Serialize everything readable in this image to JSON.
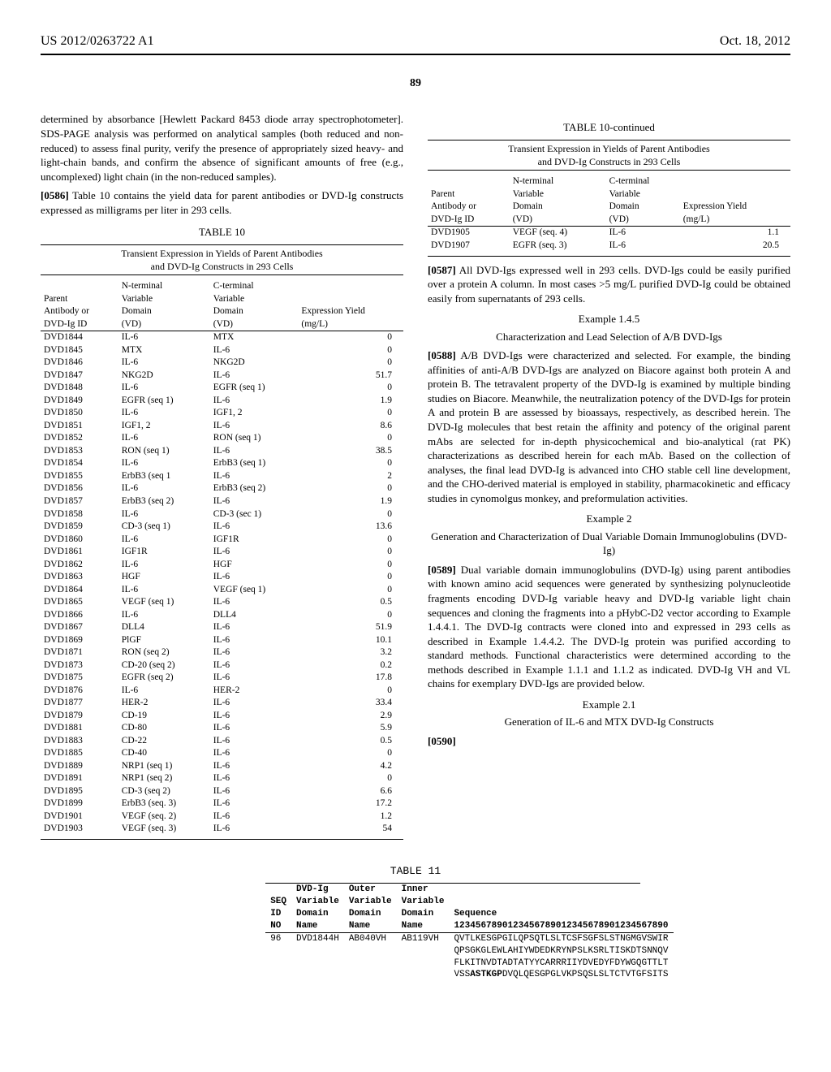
{
  "header": {
    "pubnum": "US 2012/0263722 A1",
    "pubdate": "Oct. 18, 2012",
    "pagenum": "89"
  },
  "left": {
    "p1": "determined by absorbance [Hewlett Packard 8453 diode array spectrophotometer]. SDS-PAGE analysis was performed on analytical samples (both reduced and non-reduced) to assess final purity, verify the presence of appropriately sized heavy- and light-chain bands, and confirm the absence of significant amounts of free (e.g., uncomplexed) light chain (in the non-reduced samples).",
    "p2num": "[0586]",
    "p2": "Table 10 contains the yield data for parent antibodies or DVD-Ig constructs expressed as milligrams per liter in 293 cells.",
    "tbl10": {
      "caption": "TABLE 10",
      "sub1": "Transient Expression in Yields of Parent Antibodies",
      "sub2": "and DVD-Ig Constructs in 293 Cells",
      "h1a": "Parent",
      "h1b": "Antibody or",
      "h1c": "DVD-Ig ID",
      "h2a": "N-terminal",
      "h2b": "Variable",
      "h2c": "Domain",
      "h2d": "(VD)",
      "h3a": "C-terminal",
      "h3b": "Variable",
      "h3c": "Domain",
      "h3d": "(VD)",
      "h4a": "Expression Yield",
      "h4b": "(mg/L)",
      "rows": [
        [
          "DVD1844",
          "IL-6",
          "MTX",
          "0"
        ],
        [
          "DVD1845",
          "MTX",
          "IL-6",
          "0"
        ],
        [
          "DVD1846",
          "IL-6",
          "NKG2D",
          "0"
        ],
        [
          "DVD1847",
          "NKG2D",
          "IL-6",
          "51.7"
        ],
        [
          "DVD1848",
          "IL-6",
          "EGFR (seq 1)",
          "0"
        ],
        [
          "DVD1849",
          "EGFR (seq 1)",
          "IL-6",
          "1.9"
        ],
        [
          "DVD1850",
          "IL-6",
          "IGF1, 2",
          "0"
        ],
        [
          "DVD1851",
          "IGF1, 2",
          "IL-6",
          "8.6"
        ],
        [
          "DVD1852",
          "IL-6",
          "RON (seq 1)",
          "0"
        ],
        [
          "DVD1853",
          "RON (seq 1)",
          "IL-6",
          "38.5"
        ],
        [
          "DVD1854",
          "IL-6",
          "ErbB3 (seq 1)",
          "0"
        ],
        [
          "DVD1855",
          "ErbB3 (seq 1",
          "IL-6",
          "2"
        ],
        [
          "DVD1856",
          "IL-6",
          "ErbB3 (seq 2)",
          "0"
        ],
        [
          "DVD1857",
          "ErbB3 (seq 2)",
          "IL-6",
          "1.9"
        ],
        [
          "DVD1858",
          "IL-6",
          "CD-3 (sec 1)",
          "0"
        ],
        [
          "DVD1859",
          "CD-3 (seq 1)",
          "IL-6",
          "13.6"
        ],
        [
          "DVD1860",
          "IL-6",
          "IGF1R",
          "0"
        ],
        [
          "DVD1861",
          "IGF1R",
          "IL-6",
          "0"
        ],
        [
          "DVD1862",
          "IL-6",
          "HGF",
          "0"
        ],
        [
          "DVD1863",
          "HGF",
          "IL-6",
          "0"
        ],
        [
          "DVD1864",
          "IL-6",
          "VEGF (seq 1)",
          "0"
        ],
        [
          "DVD1865",
          "VEGF (seq 1)",
          "IL-6",
          "0.5"
        ],
        [
          "DVD1866",
          "IL-6",
          "DLL4",
          "0"
        ],
        [
          "DVD1867",
          "DLL4",
          "IL-6",
          "51.9"
        ],
        [
          "DVD1869",
          "PlGF",
          "IL-6",
          "10.1"
        ],
        [
          "DVD1871",
          "RON (seq 2)",
          "IL-6",
          "3.2"
        ],
        [
          "DVD1873",
          "CD-20 (seq 2)",
          "IL-6",
          "0.2"
        ],
        [
          "DVD1875",
          "EGFR (seq 2)",
          "IL-6",
          "17.8"
        ],
        [
          "DVD1876",
          "IL-6",
          "HER-2",
          "0"
        ],
        [
          "DVD1877",
          "HER-2",
          "IL-6",
          "33.4"
        ],
        [
          "DVD1879",
          "CD-19",
          "IL-6",
          "2.9"
        ],
        [
          "DVD1881",
          "CD-80",
          "IL-6",
          "5.9"
        ],
        [
          "DVD1883",
          "CD-22",
          "IL-6",
          "0.5"
        ],
        [
          "DVD1885",
          "CD-40",
          "IL-6",
          "0"
        ],
        [
          "DVD1889",
          "NRP1 (seq 1)",
          "IL-6",
          "4.2"
        ],
        [
          "DVD1891",
          "NRP1 (seq 2)",
          "IL-6",
          "0"
        ],
        [
          "DVD1895",
          "CD-3 (seq 2)",
          "IL-6",
          "6.6"
        ],
        [
          "DVD1899",
          "ErbB3 (seq. 3)",
          "IL-6",
          "17.2"
        ],
        [
          "DVD1901",
          "VEGF (seq. 2)",
          "IL-6",
          "1.2"
        ],
        [
          "DVD1903",
          "VEGF (seq. 3)",
          "IL-6",
          "54"
        ]
      ]
    }
  },
  "right": {
    "tbl10c": {
      "caption": "TABLE 10-continued",
      "sub1": "Transient Expression in Yields of Parent Antibodies",
      "sub2": "and DVD-Ig Constructs in 293 Cells",
      "rows": [
        [
          "DVD1905",
          "VEGF (seq. 4)",
          "IL-6",
          "1.1"
        ],
        [
          "DVD1907",
          "EGFR (seq. 3)",
          "IL-6",
          "20.5"
        ]
      ]
    },
    "p587n": "[0587]",
    "p587": "All DVD-Igs expressed well in 293 cells. DVD-Igs could be easily purified over a protein A column. In most cases >5 mg/L purified DVD-Ig could be obtained easily from supernatants of 293 cells.",
    "ex145a": "Example 1.4.5",
    "ex145b": "Characterization and Lead Selection of A/B DVD-Igs",
    "p588n": "[0588]",
    "p588": "A/B DVD-Igs were characterized and selected. For example, the binding affinities of anti-A/B DVD-Igs are analyzed on Biacore against both protein A and protein B. The tetravalent property of the DVD-Ig is examined by multiple binding studies on Biacore. Meanwhile, the neutralization potency of the DVD-Igs for protein A and protein B are assessed by bioassays, respectively, as described herein. The DVD-Ig molecules that best retain the affinity and potency of the original parent mAbs are selected for in-depth physicochemical and bio-analytical (rat PK) characterizations as described herein for each mAb. Based on the collection of analyses, the final lead DVD-Ig is advanced into CHO stable cell line development, and the CHO-derived material is employed in stability, pharmacokinetic and efficacy studies in cynomolgus monkey, and preformulation activities.",
    "ex2a": "Example 2",
    "ex2b": "Generation and Characterization of Dual Variable Domain Immunoglobulins (DVD-Ig)",
    "p589n": "[0589]",
    "p589": "Dual variable domain immunoglobulins (DVD-Ig) using parent antibodies with known amino acid sequences were generated by synthesizing polynucleotide fragments encoding DVD-Ig variable heavy and DVD-Ig variable light chain sequences and cloning the fragments into a pHybC-D2 vector according to Example 1.4.4.1. The DVD-Ig contracts were cloned into and expressed in 293 cells as described in Example 1.4.4.2. The DVD-Ig protein was purified according to standard methods. Functional characteristics were determined according to the methods described in Example 1.1.1 and 1.1.2 as indicated. DVD-Ig VH and VL chains for exemplary DVD-Igs are provided below.",
    "ex21a": "Example 2.1",
    "ex21b": "Generation of IL-6 and MTX DVD-Ig Constructs",
    "p590n": "[0590]"
  },
  "tbl11": {
    "caption": "TABLE 11",
    "h": {
      "c1a": "SEQ",
      "c1b": "ID",
      "c1c": "NO",
      "c2a": "DVD-Ig",
      "c2b": "Variable",
      "c2c": "Domain",
      "c2d": "Name",
      "c3a": "Outer",
      "c3b": "Variable",
      "c3c": "Domain",
      "c3d": "Name",
      "c4a": "Inner",
      "c4b": "Variable",
      "c4c": "Domain",
      "c4d": "Name",
      "c5a": "Sequence",
      "c5b": "1234567890123456789012345678901234567890"
    },
    "row": {
      "seq": "96",
      "name": "DVD1844H",
      "outer": "AB040VH",
      "inner": "AB119VH",
      "l1": "QVTLKESGPGILQPSQTLSLTCSFSGFSLSTNGMGVSWIR",
      "l2": "QPSGKGLEWLAHIYWDEDKRYNPSLKSRLTISKDTSNNQV",
      "l3": "FLKITNVDTADTATYYCARRRIIYDVEDYFDYWGQGTTLT",
      "l4": "VSSASTKGPDVQLQESGPGLVKPSQSLSLTCTVTGFSITS"
    }
  }
}
